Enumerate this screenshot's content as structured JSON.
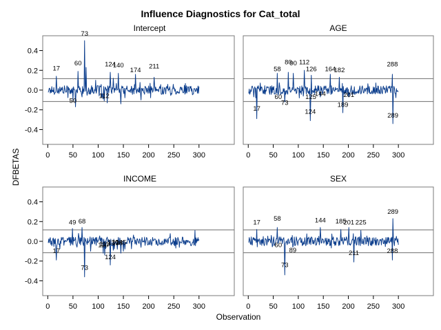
{
  "title": "Influence Diagnostics for Cat_total",
  "ylabel": "DFBETAS",
  "xlabel": "Observation",
  "colors": {
    "series": "#0b3d8c",
    "cutoff": "#6e6e6e",
    "frame": "#7a7a7a",
    "background": "#ffffff"
  },
  "chart_data": {
    "type": "line",
    "n_observations": 300,
    "xlim": [
      -10,
      370
    ],
    "ylim": [
      -0.55,
      0.55
    ],
    "x_ticks": [
      0,
      50,
      100,
      150,
      200,
      250,
      300
    ],
    "y_ticks": [
      -0.4,
      -0.2,
      0.0,
      0.2,
      0.4
    ],
    "y_tick_labels": [
      "-0.4",
      "-0.2",
      "0.0",
      "0.2",
      "0.4"
    ],
    "cutoff": 0.1155,
    "grid": false,
    "panels": [
      {
        "title": "Intercept",
        "points": [
          [
            17,
            0.14
          ],
          [
            50,
            -0.1
          ],
          [
            55,
            -0.17
          ],
          [
            60,
            0.19
          ],
          [
            73,
            0.5
          ],
          [
            76,
            0.23
          ],
          [
            95,
            0.1
          ],
          [
            110,
            -0.09
          ],
          [
            112,
            -0.11
          ],
          [
            118,
            -0.13
          ],
          [
            124,
            0.18
          ],
          [
            130,
            0.12
          ],
          [
            140,
            0.17
          ],
          [
            145,
            -0.14
          ],
          [
            174,
            0.16
          ],
          [
            185,
            -0.1
          ],
          [
            211,
            0.13
          ]
        ],
        "labels": [
          {
            "text": "73",
            "x": 73,
            "y": 0.55
          },
          {
            "text": "17",
            "x": 17,
            "y": 0.2
          },
          {
            "text": "60",
            "x": 60,
            "y": 0.25
          },
          {
            "text": "124",
            "x": 124,
            "y": 0.24
          },
          {
            "text": "140",
            "x": 140,
            "y": 0.23
          },
          {
            "text": "174",
            "x": 174,
            "y": 0.18
          },
          {
            "text": "211",
            "x": 211,
            "y": 0.22
          },
          {
            "text": "50",
            "x": 50,
            "y": -0.13
          },
          {
            "text": "112",
            "x": 112,
            "y": -0.08
          }
        ]
      },
      {
        "title": "AGE",
        "points": [
          [
            17,
            -0.29
          ],
          [
            58,
            0.17
          ],
          [
            60,
            -0.05
          ],
          [
            73,
            -0.12
          ],
          [
            80,
            0.18
          ],
          [
            90,
            0.17
          ],
          [
            112,
            0.2
          ],
          [
            124,
            -0.31
          ],
          [
            125,
            -0.08
          ],
          [
            126,
            0.15
          ],
          [
            144,
            -0.07
          ],
          [
            164,
            0.16
          ],
          [
            182,
            0.13
          ],
          [
            189,
            -0.23
          ],
          [
            201,
            -0.07
          ],
          [
            288,
            0.16
          ],
          [
            289,
            -0.34
          ]
        ],
        "labels": [
          {
            "text": "288",
            "x": 288,
            "y": 0.24
          },
          {
            "text": "58",
            "x": 58,
            "y": 0.19
          },
          {
            "text": "80",
            "x": 80,
            "y": 0.26
          },
          {
            "text": "90",
            "x": 90,
            "y": 0.25
          },
          {
            "text": "112",
            "x": 112,
            "y": 0.26
          },
          {
            "text": "126",
            "x": 126,
            "y": 0.19
          },
          {
            "text": "164",
            "x": 164,
            "y": 0.19
          },
          {
            "text": "182",
            "x": 182,
            "y": 0.18
          },
          {
            "text": "60",
            "x": 60,
            "y": -0.09
          },
          {
            "text": "73",
            "x": 73,
            "y": -0.15
          },
          {
            "text": "125",
            "x": 125,
            "y": -0.09
          },
          {
            "text": "144",
            "x": 144,
            "y": -0.06
          },
          {
            "text": "201",
            "x": 201,
            "y": -0.07
          },
          {
            "text": "17",
            "x": 17,
            "y": -0.21
          },
          {
            "text": "189",
            "x": 189,
            "y": -0.17
          },
          {
            "text": "124",
            "x": 124,
            "y": -0.24
          },
          {
            "text": "289",
            "x": 289,
            "y": -0.28
          }
        ]
      },
      {
        "title": "INCOME",
        "points": [
          [
            17,
            -0.19
          ],
          [
            49,
            0.13
          ],
          [
            68,
            0.14
          ],
          [
            73,
            -0.36
          ],
          [
            85,
            -0.1
          ],
          [
            110,
            -0.12
          ],
          [
            113,
            -0.14
          ],
          [
            124,
            -0.24
          ],
          [
            130,
            -0.09
          ],
          [
            138,
            -0.08
          ],
          [
            145,
            -0.12
          ],
          [
            150,
            -0.1
          ],
          [
            292,
            0.11
          ]
        ],
        "labels": [
          {
            "text": "49",
            "x": 49,
            "y": 0.17
          },
          {
            "text": "68",
            "x": 68,
            "y": 0.18
          },
          {
            "text": "17",
            "x": 17,
            "y": -0.12
          },
          {
            "text": "110",
            "x": 110,
            "y": -0.06
          },
          {
            "text": "113",
            "x": 113,
            "y": -0.05
          },
          {
            "text": "130",
            "x": 130,
            "y": -0.03
          },
          {
            "text": "138",
            "x": 138,
            "y": -0.04
          },
          {
            "text": "145",
            "x": 145,
            "y": -0.03
          },
          {
            "text": "124",
            "x": 124,
            "y": -0.18
          },
          {
            "text": "73",
            "x": 73,
            "y": -0.29
          }
        ]
      },
      {
        "title": "SEX",
        "points": [
          [
            17,
            0.12
          ],
          [
            58,
            0.14
          ],
          [
            60,
            -0.02
          ],
          [
            73,
            -0.34
          ],
          [
            89,
            -0.06
          ],
          [
            144,
            0.14
          ],
          [
            185,
            0.12
          ],
          [
            201,
            0.14
          ],
          [
            211,
            -0.21
          ],
          [
            225,
            0.11
          ],
          [
            288,
            -0.19
          ],
          [
            289,
            0.23
          ]
        ],
        "labels": [
          {
            "text": "289",
            "x": 289,
            "y": 0.28
          },
          {
            "text": "17",
            "x": 17,
            "y": 0.17
          },
          {
            "text": "58",
            "x": 58,
            "y": 0.21
          },
          {
            "text": "144",
            "x": 144,
            "y": 0.19
          },
          {
            "text": "185",
            "x": 185,
            "y": 0.18
          },
          {
            "text": "201",
            "x": 201,
            "y": 0.17
          },
          {
            "text": "225",
            "x": 225,
            "y": 0.17
          },
          {
            "text": "60",
            "x": 60,
            "y": -0.06
          },
          {
            "text": "89",
            "x": 89,
            "y": -0.11
          },
          {
            "text": "211",
            "x": 211,
            "y": -0.14
          },
          {
            "text": "288",
            "x": 288,
            "y": -0.12
          },
          {
            "text": "73",
            "x": 73,
            "y": -0.26
          }
        ]
      }
    ]
  }
}
